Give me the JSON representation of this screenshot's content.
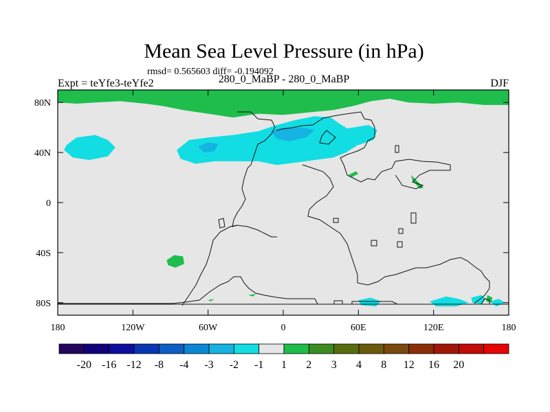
{
  "chart_data": {
    "type": "heatmap",
    "title": "Mean Sea Level Pressure (in hPa)",
    "stats_label": "rmsd= 0.565603 diff= -0.194092",
    "subtitle": "280_0_MaBP - 280_0_MaBP",
    "left_label": "Expt = teYfe3-teYfe2",
    "right_label": "DJF",
    "xlim": [
      -180,
      180
    ],
    "ylim": [
      -90,
      90
    ],
    "x_ticks": [
      {
        "value": -180,
        "label": "180"
      },
      {
        "value": -120,
        "label": "120W"
      },
      {
        "value": -60,
        "label": "60W"
      },
      {
        "value": 0,
        "label": "0"
      },
      {
        "value": 60,
        "label": "60E"
      },
      {
        "value": 120,
        "label": "120E"
      },
      {
        "value": 180,
        "label": "180"
      }
    ],
    "y_ticks": [
      {
        "value": 80,
        "label": "80N"
      },
      {
        "value": 40,
        "label": "40N"
      },
      {
        "value": 0,
        "label": "0"
      },
      {
        "value": -40,
        "label": "40S"
      },
      {
        "value": -80,
        "label": "80S"
      }
    ],
    "colorbar": {
      "colors": [
        "#24045c",
        "#11017c",
        "#0d0e9e",
        "#0936b2",
        "#0c5ec4",
        "#0b86d4",
        "#15b3e2",
        "#11dde2",
        "#e6e6e6",
        "#1fbd4b",
        "#3c8c24",
        "#566d10",
        "#6a5a0a",
        "#7a4a0c",
        "#8b2d08",
        "#a01608",
        "#c20a08",
        "#e60404"
      ],
      "labels": [
        "-20",
        "-16",
        "-12",
        "-8",
        "-4",
        "-3",
        "-2",
        "-1",
        "1",
        "2",
        "3",
        "4",
        "8",
        "12",
        "16",
        "20"
      ]
    },
    "regions": [
      {
        "level": "-1 to -2",
        "color": "#11dde2",
        "polygons": [
          [
            [
              -173,
              46
            ],
            [
              -165,
              52
            ],
            [
              -150,
              54
            ],
            [
              -140,
              50
            ],
            [
              -134,
              44
            ],
            [
              -140,
              37
            ],
            [
              -155,
              34
            ],
            [
              -168,
              36
            ],
            [
              -175,
              42
            ]
          ],
          [
            [
              -85,
              42
            ],
            [
              -75,
              50
            ],
            [
              -60,
              52
            ],
            [
              -40,
              54
            ],
            [
              -20,
              57
            ],
            [
              -5,
              62
            ],
            [
              10,
              66
            ],
            [
              25,
              69
            ],
            [
              38,
              68
            ],
            [
              45,
              63
            ],
            [
              50,
              60
            ],
            [
              55,
              56
            ],
            [
              65,
              50
            ],
            [
              58,
              45
            ],
            [
              50,
              40
            ],
            [
              40,
              36
            ],
            [
              25,
              34
            ],
            [
              10,
              32
            ],
            [
              -5,
              30
            ],
            [
              -20,
              33
            ],
            [
              -35,
              33
            ],
            [
              -55,
              33
            ],
            [
              -70,
              31
            ],
            [
              -82,
              35
            ]
          ],
          [
            [
              50,
              59
            ],
            [
              68,
              62
            ],
            [
              75,
              58
            ],
            [
              72,
              50
            ],
            [
              60,
              46
            ],
            [
              52,
              52
            ]
          ],
          [
            [
              60,
              -78
            ],
            [
              70,
              -76
            ],
            [
              78,
              -79
            ],
            [
              74,
              -83
            ],
            [
              62,
              -82
            ]
          ],
          [
            [
              117,
              -79
            ],
            [
              130,
              -75
            ],
            [
              140,
              -77
            ],
            [
              148,
              -80
            ],
            [
              138,
              -83
            ],
            [
              122,
              -83
            ]
          ],
          [
            [
              150,
              -76
            ],
            [
              158,
              -74
            ],
            [
              162,
              -77
            ],
            [
              158,
              -81
            ],
            [
              151,
              -80
            ]
          ],
          [
            [
              165,
              -79
            ],
            [
              172,
              -77
            ],
            [
              177,
              -80
            ],
            [
              170,
              -83
            ]
          ]
        ]
      },
      {
        "level": "-2 to -3",
        "color": "#15b3e2",
        "polygons": [
          [
            [
              -68,
              45
            ],
            [
              -60,
              48
            ],
            [
              -52,
              47
            ],
            [
              -55,
              41
            ],
            [
              -63,
              40
            ]
          ],
          [
            [
              -10,
              57
            ],
            [
              0,
              60
            ],
            [
              15,
              60
            ],
            [
              25,
              58
            ],
            [
              18,
              52
            ],
            [
              5,
              49
            ],
            [
              -5,
              51
            ]
          ]
        ]
      },
      {
        "level": "1 to 2",
        "color": "#1fbd4b",
        "polygons": [
          [
            [
              -180,
              90
            ],
            [
              180,
              90
            ],
            [
              180,
              78
            ],
            [
              160,
              78
            ],
            [
              140,
              80
            ],
            [
              120,
              79
            ],
            [
              100,
              80
            ],
            [
              85,
              83
            ],
            [
              70,
              81
            ],
            [
              55,
              77
            ],
            [
              40,
              74
            ],
            [
              20,
              72
            ],
            [
              0,
              70
            ],
            [
              -20,
              71
            ],
            [
              -40,
              68
            ],
            [
              -60,
              71
            ],
            [
              -80,
              74
            ],
            [
              -95,
              77
            ],
            [
              -110,
              79
            ],
            [
              -130,
              81
            ],
            [
              -150,
              80
            ],
            [
              -165,
              79
            ],
            [
              -180,
              80
            ]
          ],
          [
            [
              -93,
              -46
            ],
            [
              -87,
              -42
            ],
            [
              -80,
              -43
            ],
            [
              -79,
              -49
            ],
            [
              -86,
              -52
            ],
            [
              -92,
              -50
            ]
          ],
          [
            [
              52,
              22
            ],
            [
              58,
              25
            ],
            [
              60,
              23
            ],
            [
              54,
              20
            ]
          ],
          [
            [
              102,
              22
            ],
            [
              108,
              16
            ],
            [
              112,
              12
            ],
            [
              109,
              11
            ],
            [
              103,
              18
            ]
          ],
          [
            [
              163,
              -74
            ],
            [
              167,
              -76
            ],
            [
              166,
              -80
            ],
            [
              162,
              -79
            ]
          ],
          [
            [
              -28,
              -74
            ],
            [
              -22,
              -73
            ],
            [
              -24,
              -75
            ]
          ],
          [
            [
              -60,
              -78
            ],
            [
              -55,
              -77
            ],
            [
              -58,
              -79
            ]
          ]
        ]
      }
    ]
  }
}
